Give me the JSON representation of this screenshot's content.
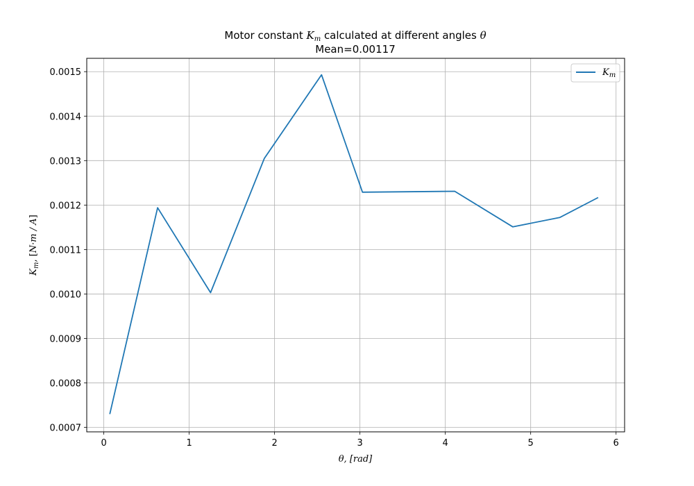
{
  "chart_data": {
    "type": "line",
    "title": "Motor constant Km calculated at different angles θ",
    "subtitle": "Mean=0.00117",
    "xlabel": "θ, [rad]",
    "ylabel": "Km, [N·m / A]",
    "xlim": [
      -0.2,
      6.1
    ],
    "ylim": [
      0.00069,
      0.00153
    ],
    "xticks": [
      0,
      1,
      2,
      3,
      4,
      5,
      6
    ],
    "xtick_labels": [
      "0",
      "1",
      "2",
      "3",
      "4",
      "5",
      "6"
    ],
    "yticks": [
      0.0007,
      0.0008,
      0.0009,
      0.001,
      0.0011,
      0.0012,
      0.0013,
      0.0014,
      0.0015
    ],
    "ytick_labels": [
      "0.0007",
      "0.0008",
      "0.0009",
      "0.0010",
      "0.0011",
      "0.0012",
      "0.0013",
      "0.0014",
      "0.0015"
    ],
    "grid": true,
    "legend_position": "top-right",
    "series": [
      {
        "name": "Km",
        "color": "#1f77b4",
        "x": [
          0.07,
          0.63,
          1.25,
          1.88,
          2.55,
          3.03,
          4.11,
          4.79,
          5.34,
          5.79
        ],
        "y": [
          0.00073,
          0.001194,
          0.001003,
          0.001305,
          0.001493,
          0.001229,
          0.001231,
          0.001151,
          0.001172,
          0.001217
        ]
      }
    ]
  }
}
